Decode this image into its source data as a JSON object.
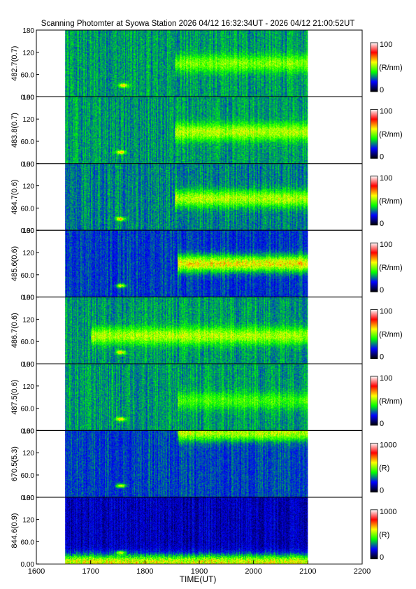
{
  "title": "Scanning Photomter at Syowa Station 2026 04/12 16:32:34UT - 2026 04/12 21:00:52UT",
  "chart_data": {
    "type": "heatmap",
    "title": "Scanning Photomter at Syowa Station 2026 04/12 16:32:34UT - 2026 04/12 21:00:52UT",
    "xlabel": "TIME(UT)",
    "xlim": [
      1600,
      2200
    ],
    "x_ticks": [
      "1600",
      "1700",
      "1800",
      "1900",
      "2000",
      "2100",
      "2200"
    ],
    "x_tick_values": [
      1600,
      1700,
      1800,
      1900,
      2000,
      2100,
      2200
    ],
    "data_time_range": [
      1653,
      2100
    ],
    "ylim": [
      0,
      180
    ],
    "y_ticks": [
      "0.00",
      "60.0",
      "120",
      "180"
    ],
    "y_tick_values": [
      0,
      60,
      120,
      180
    ],
    "colormap": [
      "#000000",
      "#0000ff",
      "#00ff00",
      "#ffff00",
      "#ff0000",
      "#ffffff"
    ],
    "panels": [
      {
        "ylabel": "482.7(0.7)",
        "cbar_max": "100",
        "cbar_unit": "(R/nm)",
        "cbar_min": "0",
        "bg_intensity": 0.32,
        "band_center": 90,
        "band_intensity": 0.5,
        "band_start": 1855,
        "spot_time": 1760,
        "spot_y": 30
      },
      {
        "ylabel": "483.8(0.7)",
        "cbar_max": "100",
        "cbar_unit": "(R/nm)",
        "cbar_min": "0",
        "bg_intensity": 0.32,
        "band_center": 85,
        "band_intensity": 0.55,
        "band_start": 1855,
        "spot_time": 1755,
        "spot_y": 30
      },
      {
        "ylabel": "484.7(0.6)",
        "cbar_max": "100",
        "cbar_unit": "(R/nm)",
        "cbar_min": "0",
        "bg_intensity": 0.3,
        "band_center": 85,
        "band_intensity": 0.55,
        "band_start": 1855,
        "spot_time": 1755,
        "spot_y": 30
      },
      {
        "ylabel": "485.6(0.6)",
        "cbar_max": "100",
        "cbar_unit": "(R/nm)",
        "cbar_min": "0",
        "bg_intensity": 0.24,
        "band_center": 90,
        "band_intensity": 0.62,
        "band_start": 1860,
        "spot_time": 1755,
        "spot_y": 30
      },
      {
        "ylabel": "486.7(0.6)",
        "cbar_max": "100",
        "cbar_unit": "(R/nm)",
        "cbar_min": "0",
        "bg_intensity": 0.32,
        "band_center": 75,
        "band_intensity": 0.55,
        "band_start": 1700,
        "spot_time": 1755,
        "spot_y": 30
      },
      {
        "ylabel": "487.5(0.6)",
        "cbar_max": "100",
        "cbar_unit": "(R/nm)",
        "cbar_min": "0",
        "bg_intensity": 0.32,
        "band_center": 80,
        "band_intensity": 0.45,
        "band_start": 1860,
        "spot_time": 1755,
        "spot_y": 30
      },
      {
        "ylabel": "670.5(5.3)",
        "cbar_max": "1000",
        "cbar_unit": "(R)",
        "cbar_min": "0",
        "bg_intensity": 0.25,
        "band_center": 175,
        "band_intensity": 0.55,
        "band_start": 1860,
        "spot_time": 1755,
        "spot_y": 30
      },
      {
        "ylabel": "844.6(0.9)",
        "cbar_max": "1000",
        "cbar_unit": "(R)",
        "cbar_min": "0",
        "bg_intensity": 0.15,
        "band_center": 3,
        "band_intensity": 0.6,
        "band_start": 1653,
        "spot_time": 1755,
        "spot_y": 30
      }
    ]
  }
}
